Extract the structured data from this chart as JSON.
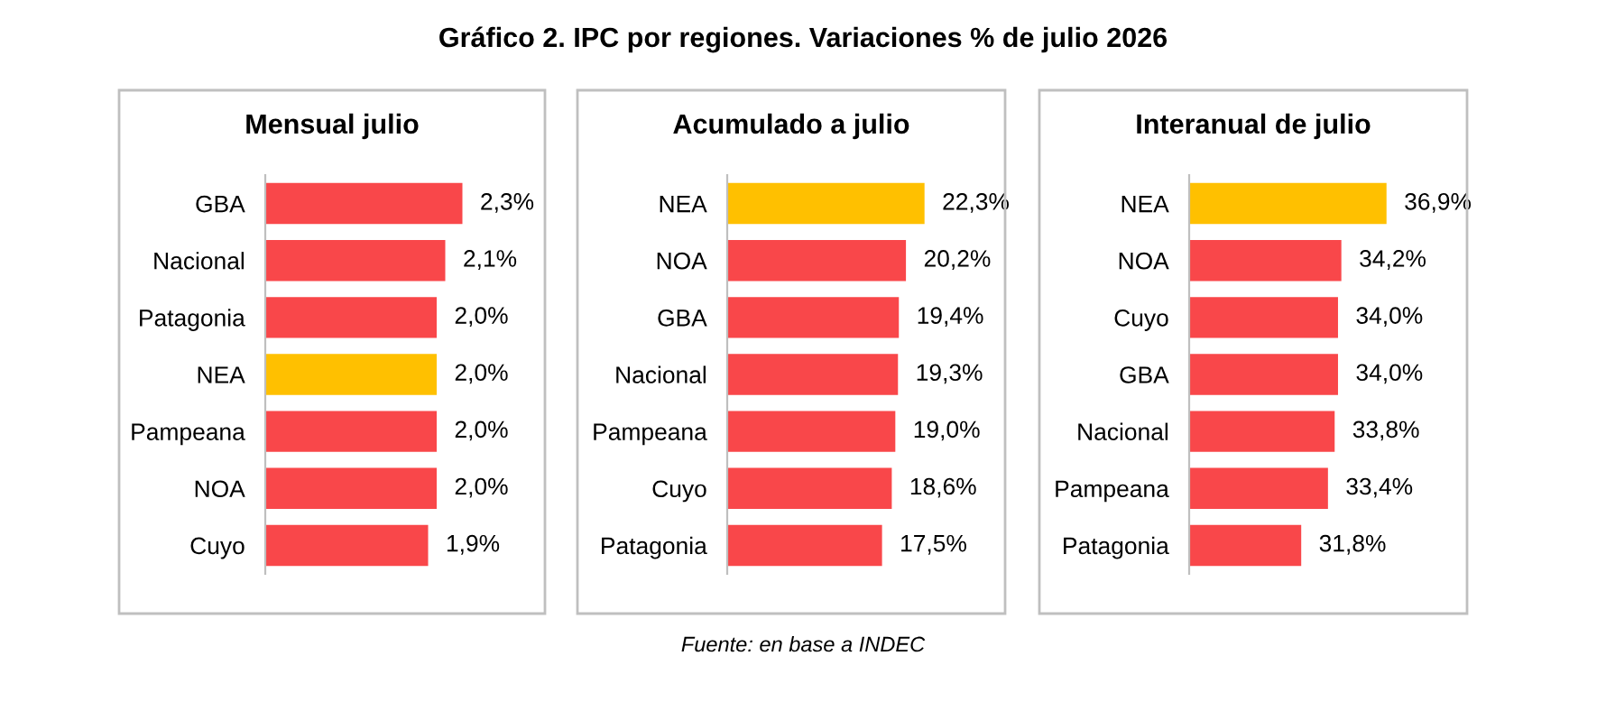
{
  "chart_data": [
    {
      "type": "other",
      "title": "Gráfico 2. IPC por regiones. Variaciones % de julio 2026",
      "annotations": [
        "Fuente: en base a INDEC"
      ]
    },
    {
      "type": "bar",
      "orientation": "horizontal",
      "title": "Mensual julio",
      "categories": [
        "GBA",
        "Nacional",
        "Patagonia",
        "NEA",
        "Pampeana",
        "NOA",
        "Cuyo"
      ],
      "values": [
        2.3,
        2.1,
        2.0,
        2.0,
        2.0,
        2.0,
        1.9
      ],
      "value_labels": [
        "2,3%",
        "2,1%",
        "2,0%",
        "2,0%",
        "2,0%",
        "2,0%",
        "1,9%"
      ],
      "colors": [
        "#f9474a",
        "#f9474a",
        "#f9474a",
        "#ffc000",
        "#f9474a",
        "#f9474a",
        "#f9474a"
      ],
      "xlim": [
        0,
        3.2
      ],
      "tick_labels": "y",
      "grid": false,
      "legend": false
    },
    {
      "type": "bar",
      "orientation": "horizontal",
      "title": "Acumulado a julio",
      "categories": [
        "NEA",
        "NOA",
        "GBA",
        "Nacional",
        "Pampeana",
        "Cuyo",
        "Patagonia"
      ],
      "values": [
        22.3,
        20.2,
        19.4,
        19.3,
        19.0,
        18.6,
        17.5
      ],
      "value_labels": [
        "22,3%",
        "20,2%",
        "19,4%",
        "19,3%",
        "19,0%",
        "18,6%",
        "17,5%"
      ],
      "colors": [
        "#ffc000",
        "#f9474a",
        "#f9474a",
        "#f9474a",
        "#f9474a",
        "#f9474a",
        "#f9474a"
      ],
      "xlim": [
        0,
        31
      ],
      "tick_labels": "y",
      "grid": false,
      "legend": false
    },
    {
      "type": "bar",
      "orientation": "horizontal",
      "title": "Interanual de julio",
      "categories": [
        "NEA",
        "NOA",
        "Cuyo",
        "GBA",
        "Nacional",
        "Pampeana",
        "Patagonia"
      ],
      "values": [
        36.9,
        34.2,
        34.0,
        34.0,
        33.8,
        33.4,
        31.8
      ],
      "value_labels": [
        "36,9%",
        "34,2%",
        "34,0%",
        "34,0%",
        "33,8%",
        "33,4%",
        "31,8%"
      ],
      "colors": [
        "#ffc000",
        "#f9474a",
        "#f9474a",
        "#f9474a",
        "#f9474a",
        "#f9474a",
        "#f9474a"
      ],
      "xlim": [
        25.1,
        41.5
      ],
      "tick_labels": "y",
      "grid": false,
      "legend": false
    }
  ]
}
